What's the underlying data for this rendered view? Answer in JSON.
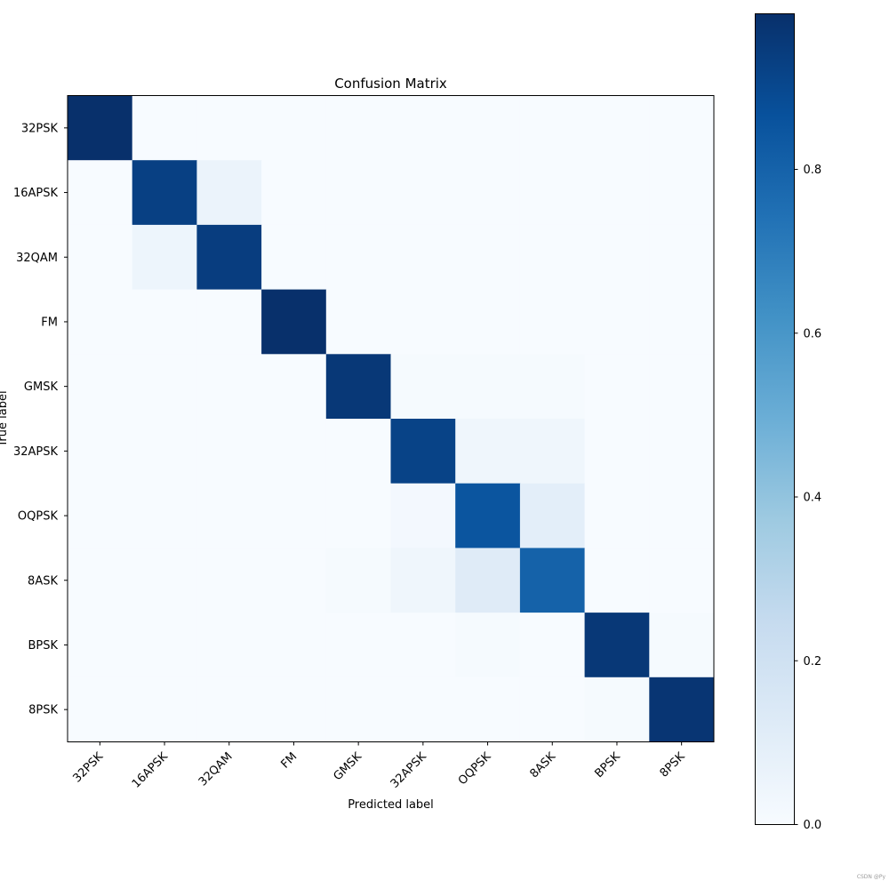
{
  "chart_data": {
    "type": "heatmap",
    "title": "Confusion Matrix",
    "xlabel": "Predicted label",
    "ylabel": "True label",
    "x_categories": [
      "32PSK",
      "16APSK",
      "32QAM",
      "FM",
      "GMSK",
      "32APSK",
      "OQPSK",
      "8ASK",
      "BPSK",
      "8PSK"
    ],
    "y_categories": [
      "32PSK",
      "16APSK",
      "32QAM",
      "FM",
      "GMSK",
      "32APSK",
      "OQPSK",
      "8ASK",
      "BPSK",
      "8PSK"
    ],
    "values": [
      [
        0.99,
        0.0,
        0.0,
        0.0,
        0.0,
        0.0,
        0.0,
        0.0,
        0.0,
        0.0
      ],
      [
        0.0,
        0.93,
        0.06,
        0.0,
        0.0,
        0.0,
        0.0,
        0.0,
        0.0,
        0.0
      ],
      [
        0.0,
        0.05,
        0.94,
        0.0,
        0.0,
        0.0,
        0.0,
        0.0,
        0.0,
        0.0
      ],
      [
        0.0,
        0.0,
        0.0,
        0.99,
        0.0,
        0.0,
        0.0,
        0.0,
        0.0,
        0.0
      ],
      [
        0.0,
        0.0,
        0.0,
        0.0,
        0.96,
        0.01,
        0.01,
        0.01,
        0.0,
        0.0
      ],
      [
        0.0,
        0.0,
        0.0,
        0.0,
        0.0,
        0.92,
        0.04,
        0.04,
        0.0,
        0.0
      ],
      [
        0.0,
        0.0,
        0.0,
        0.0,
        0.0,
        0.02,
        0.85,
        0.1,
        0.0,
        0.0
      ],
      [
        0.0,
        0.0,
        0.0,
        0.0,
        0.01,
        0.04,
        0.12,
        0.8,
        0.0,
        0.0
      ],
      [
        0.0,
        0.0,
        0.0,
        0.0,
        0.0,
        0.0,
        0.01,
        0.0,
        0.96,
        0.01
      ],
      [
        0.0,
        0.0,
        0.0,
        0.0,
        0.0,
        0.0,
        0.0,
        0.0,
        0.01,
        0.97
      ]
    ],
    "colormap": "Blues",
    "colorbar": {
      "min": 0.0,
      "max": 0.99,
      "ticks": [
        0.0,
        0.2,
        0.4,
        0.6,
        0.8
      ],
      "tick_labels": [
        "0.0",
        "0.2",
        "0.4",
        "0.6",
        "0.8"
      ]
    },
    "grid": false,
    "legend": "colorbar-right"
  },
  "watermark": "CSDN @Py"
}
